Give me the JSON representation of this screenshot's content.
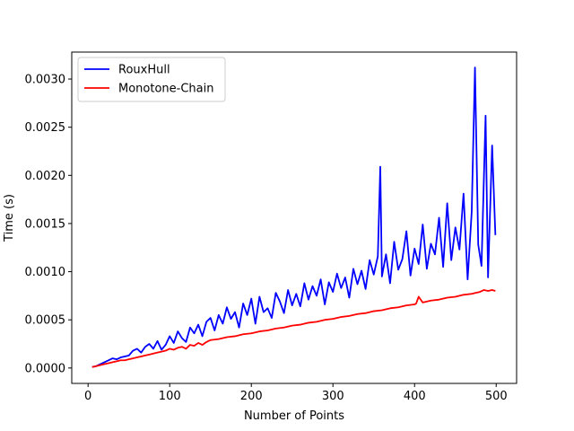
{
  "chart_data": {
    "type": "line",
    "xlabel": "Number of Points",
    "ylabel": "Time (s)",
    "xlim": [
      -20,
      525
    ],
    "ylim": [
      -0.00016,
      0.00328
    ],
    "xticks": [
      0,
      100,
      200,
      300,
      400,
      500
    ],
    "xtick_labels": [
      "0",
      "100",
      "200",
      "300",
      "400",
      "500"
    ],
    "yticks": [
      0.0,
      0.0005,
      0.001,
      0.0015,
      0.002,
      0.0025,
      0.003
    ],
    "ytick_labels": [
      "0.0000",
      "0.0005",
      "0.0010",
      "0.0015",
      "0.0020",
      "0.0025",
      "0.0030"
    ],
    "grid": false,
    "legend_position": "top-left",
    "series": [
      {
        "name": "RouxHull",
        "color": "#0000ff",
        "x": [
          5,
          10,
          15,
          20,
          25,
          30,
          35,
          40,
          45,
          50,
          55,
          60,
          65,
          70,
          75,
          80,
          85,
          90,
          95,
          100,
          105,
          110,
          115,
          120,
          125,
          130,
          135,
          140,
          145,
          150,
          155,
          160,
          165,
          170,
          175,
          180,
          185,
          190,
          195,
          200,
          205,
          210,
          215,
          220,
          225,
          230,
          235,
          240,
          245,
          250,
          255,
          260,
          265,
          270,
          275,
          280,
          285,
          290,
          295,
          300,
          305,
          310,
          315,
          320,
          325,
          330,
          335,
          340,
          345,
          350,
          355,
          358,
          360,
          365,
          370,
          375,
          380,
          385,
          390,
          395,
          400,
          405,
          410,
          415,
          420,
          425,
          430,
          435,
          440,
          445,
          450,
          455,
          460,
          465,
          470,
          474,
          478,
          482,
          487,
          490,
          495,
          499
        ],
        "y": [
          1e-05,
          2e-05,
          4e-05,
          6e-05,
          8e-05,
          0.0001,
          9e-05,
          0.00011,
          0.00012,
          0.00013,
          0.00018,
          0.0002,
          0.00016,
          0.00022,
          0.00025,
          0.0002,
          0.00028,
          0.00019,
          0.00024,
          0.00033,
          0.00026,
          0.00038,
          0.00031,
          0.00027,
          0.00042,
          0.00036,
          0.00045,
          0.00033,
          0.00048,
          0.00052,
          0.00039,
          0.00055,
          0.00046,
          0.00063,
          0.00051,
          0.00058,
          0.00042,
          0.00067,
          0.00055,
          0.00072,
          0.00046,
          0.00074,
          0.00058,
          0.00062,
          0.00052,
          0.00078,
          0.00069,
          0.00057,
          0.00081,
          0.00065,
          0.00077,
          0.00064,
          0.00088,
          0.00071,
          0.00085,
          0.00075,
          0.00092,
          0.00066,
          0.00089,
          0.00079,
          0.00098,
          0.00083,
          0.00094,
          0.00073,
          0.00103,
          0.00087,
          0.00101,
          0.00082,
          0.00112,
          0.00097,
          0.00116,
          0.00209,
          0.00095,
          0.00118,
          0.00088,
          0.00131,
          0.00102,
          0.00113,
          0.00142,
          0.00096,
          0.00124,
          0.00108,
          0.00149,
          0.00103,
          0.00129,
          0.00118,
          0.00156,
          0.00105,
          0.00171,
          0.00112,
          0.00146,
          0.00123,
          0.00181,
          0.00092,
          0.00162,
          0.00312,
          0.00128,
          0.00106,
          0.00262,
          0.00094,
          0.00231,
          0.00138
        ]
      },
      {
        "name": "Monotone-Chain",
        "color": "#ff0000",
        "x": [
          5,
          10,
          15,
          20,
          25,
          30,
          35,
          40,
          45,
          50,
          55,
          60,
          65,
          70,
          75,
          80,
          85,
          90,
          95,
          100,
          105,
          110,
          115,
          120,
          125,
          130,
          135,
          140,
          145,
          150,
          160,
          170,
          180,
          190,
          200,
          210,
          220,
          230,
          240,
          250,
          260,
          270,
          280,
          290,
          300,
          310,
          320,
          330,
          340,
          350,
          360,
          370,
          380,
          390,
          400,
          402,
          405,
          410,
          420,
          430,
          440,
          450,
          460,
          470,
          475,
          480,
          485,
          490,
          495,
          499
        ],
        "y": [
          1e-05,
          2e-05,
          3e-05,
          4e-05,
          5e-05,
          6e-05,
          7e-05,
          8e-05,
          8e-05,
          9e-05,
          0.0001,
          0.00011,
          0.00012,
          0.00013,
          0.00014,
          0.00015,
          0.00016,
          0.00017,
          0.00018,
          0.0002,
          0.00019,
          0.00021,
          0.00022,
          0.0002,
          0.00024,
          0.00023,
          0.00026,
          0.00024,
          0.00027,
          0.00029,
          0.0003,
          0.00032,
          0.00033,
          0.00035,
          0.00036,
          0.00038,
          0.00039,
          0.00041,
          0.00042,
          0.00044,
          0.00045,
          0.00047,
          0.00048,
          0.0005,
          0.00051,
          0.00053,
          0.00054,
          0.00056,
          0.00057,
          0.00059,
          0.0006,
          0.00062,
          0.00063,
          0.00065,
          0.00066,
          0.00067,
          0.00074,
          0.00068,
          0.0007,
          0.00071,
          0.00073,
          0.00074,
          0.00076,
          0.00077,
          0.00078,
          0.00079,
          0.00081,
          0.0008,
          0.00081,
          0.0008
        ]
      }
    ]
  }
}
